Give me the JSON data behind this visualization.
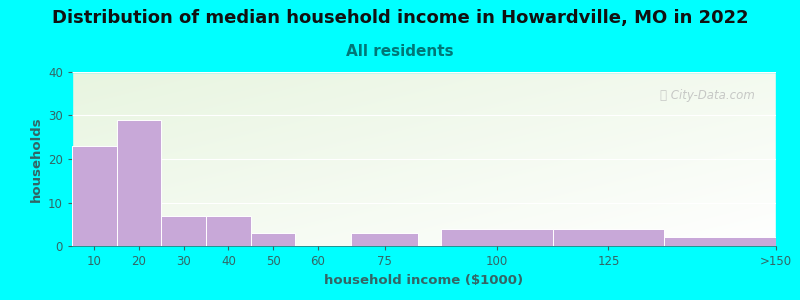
{
  "title": "Distribution of median household income in Howardville, MO in 2022",
  "subtitle": "All residents",
  "xlabel": "household income ($1000)",
  "ylabel": "households",
  "background_color": "#00FFFF",
  "bar_color": "#C8A8D8",
  "bar_edge_color": "#ffffff",
  "title_fontsize": 13,
  "subtitle_fontsize": 11,
  "subtitle_color": "#007777",
  "label_color": "#336666",
  "ylim": [
    0,
    40
  ],
  "yticks": [
    0,
    10,
    20,
    30,
    40
  ],
  "values": [
    23,
    29,
    7,
    7,
    3,
    0,
    3,
    4,
    4,
    2
  ],
  "bar_lefts": [
    5,
    15,
    25,
    35,
    45,
    55,
    67.5,
    87.5,
    112.5,
    137.5
  ],
  "bar_widths": [
    10,
    10,
    10,
    10,
    10,
    10,
    15,
    25,
    25,
    25
  ],
  "xtick_labels": [
    "10",
    "20",
    "30",
    "40",
    "50",
    "60",
    "75",
    "100",
    "125",
    ">150"
  ],
  "xtick_positions": [
    10,
    20,
    30,
    40,
    50,
    60,
    75,
    100,
    125,
    162.5
  ],
  "xlim": [
    5,
    162.5
  ],
  "watermark_text": "Ⓢ City-Data.com"
}
